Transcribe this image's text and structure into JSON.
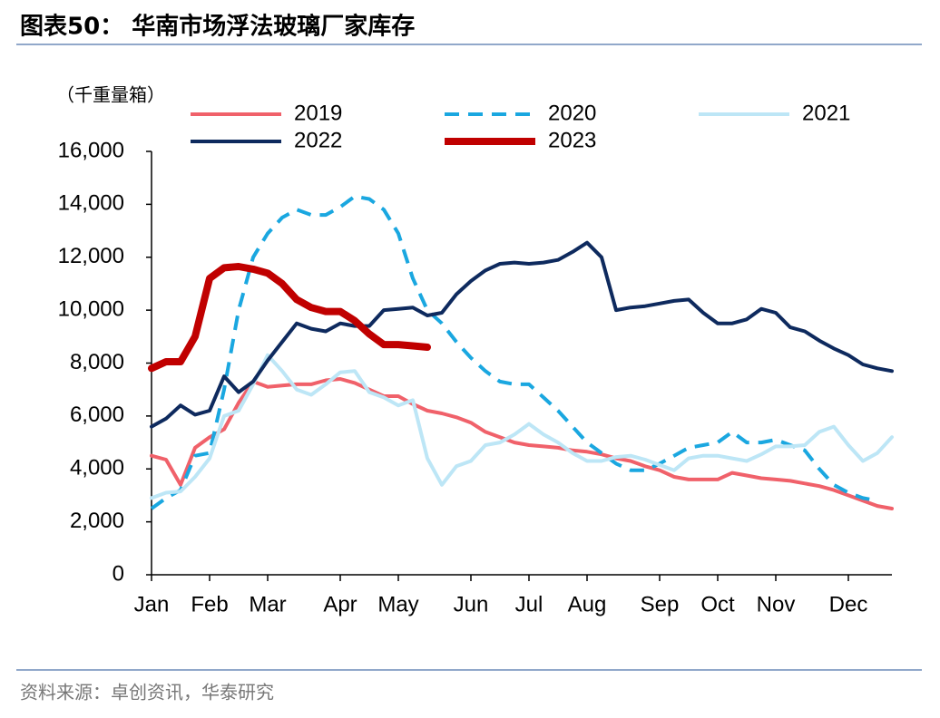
{
  "chart_data": {
    "type": "line",
    "title": "图表50：  华南市场浮法玻璃厂家库存",
    "y_label": "（千重量箱）",
    "source": "资料来源：卓创资讯，华泰研究",
    "categories": [
      "Jan",
      null,
      null,
      null,
      "Feb",
      null,
      null,
      null,
      "Mar",
      null,
      null,
      null,
      null,
      "Apr",
      null,
      null,
      null,
      "May",
      null,
      null,
      null,
      null,
      "Jun",
      null,
      null,
      null,
      "Jul",
      null,
      null,
      null,
      "Aug",
      null,
      null,
      null,
      null,
      "Sep",
      null,
      null,
      null,
      "Oct",
      null,
      null,
      null,
      "Nov",
      null,
      null,
      null,
      null,
      "Dec",
      null,
      null,
      null
    ],
    "ylim": [
      0,
      16000
    ],
    "yticks": [
      0,
      {
        "value": 2000,
        "label": "2,000"
      },
      {
        "value": 4000,
        "label": "4,000"
      },
      {
        "value": 6000,
        "label": "6,000"
      },
      {
        "value": 8000,
        "label": "8,000"
      },
      {
        "value": 10000,
        "label": "10,000"
      },
      {
        "value": 12000,
        "label": "12,000"
      },
      {
        "value": 14000,
        "label": "14,000"
      },
      {
        "value": 16000,
        "label": "16,000"
      }
    ],
    "grid": false,
    "series": [
      {
        "name": "2019",
        "color": "#f0616a",
        "line_style": "solid",
        "values": [
          4500,
          4350,
          3400,
          4800,
          5200,
          5500,
          6500,
          7300,
          7100,
          7150,
          7200,
          7200,
          7350,
          7400,
          7250,
          7000,
          6750,
          6750,
          6450,
          6200,
          6100,
          5950,
          5750,
          5400,
          5200,
          5000,
          4900,
          4850,
          4800,
          4700,
          4650,
          4550,
          4400,
          4300,
          4100,
          3950,
          3700,
          3600,
          3600,
          3600,
          3850,
          3750,
          3650,
          3600,
          3550,
          3450,
          3350,
          3200,
          3000,
          2800,
          2600,
          2500
        ]
      },
      {
        "name": "2020",
        "color": "#1aa7e0",
        "line_style": "dashed",
        "values": [
          2500,
          2900,
          3200,
          4500,
          4600,
          7000,
          10000,
          12000,
          12900,
          13500,
          13800,
          13600,
          13600,
          13900,
          14300,
          14200,
          13800,
          12900,
          11200,
          10000,
          9500,
          8800,
          8200,
          7700,
          7300,
          7200,
          7200,
          6700,
          6200,
          5600,
          5000,
          4600,
          4200,
          3950,
          3950,
          4200,
          4500,
          4800,
          4900,
          5000,
          5400,
          5000,
          5000,
          5100,
          4900,
          4700,
          4000,
          3400,
          3100,
          2900,
          2800,
          null
        ]
      },
      {
        "name": "2021",
        "color": "#bde6f6",
        "line_style": "solid",
        "values": [
          2900,
          3100,
          3150,
          3700,
          4400,
          6000,
          6200,
          7200,
          8300,
          7700,
          7000,
          6800,
          7200,
          7650,
          7700,
          6900,
          6700,
          6400,
          6600,
          4400,
          3400,
          4100,
          4300,
          4900,
          5000,
          5300,
          5700,
          5300,
          5000,
          4600,
          4300,
          4300,
          4450,
          4500,
          4350,
          4150,
          3950,
          4400,
          4500,
          4500,
          4400,
          4300,
          4550,
          4850,
          4850,
          4900,
          5400,
          5600,
          4900,
          4300,
          4600,
          5200
        ]
      },
      {
        "name": "2022",
        "color": "#0e2a5e",
        "line_style": "solid",
        "values": [
          5600,
          5900,
          6400,
          6050,
          6200,
          7500,
          6900,
          7300,
          8100,
          8800,
          9500,
          9300,
          9200,
          9500,
          9400,
          9400,
          10000,
          10050,
          10100,
          9800,
          9900,
          10600,
          11100,
          11500,
          11750,
          11800,
          11750,
          11800,
          11900,
          12200,
          12550,
          12000,
          10000,
          10100,
          10150,
          10250,
          10350,
          10400,
          9900,
          9500,
          9500,
          9650,
          10050,
          9900,
          9350,
          9200,
          8850,
          8550,
          8300,
          7950,
          7800,
          7700
        ]
      },
      {
        "name": "2023",
        "color": "#c00000",
        "line_style": "thick",
        "values": [
          7800,
          8050,
          8050,
          9000,
          11200,
          11600,
          11650,
          11550,
          11400,
          11000,
          10400,
          10100,
          9950,
          9950,
          9600,
          9100,
          8700,
          8700,
          8650,
          8600,
          null,
          null,
          null,
          null,
          null,
          null,
          null,
          null,
          null,
          null,
          null,
          null,
          null,
          null,
          null,
          null,
          null,
          null,
          null,
          null,
          null,
          null,
          null,
          null,
          null,
          null,
          null,
          null,
          null,
          null,
          null,
          null
        ]
      }
    ]
  }
}
